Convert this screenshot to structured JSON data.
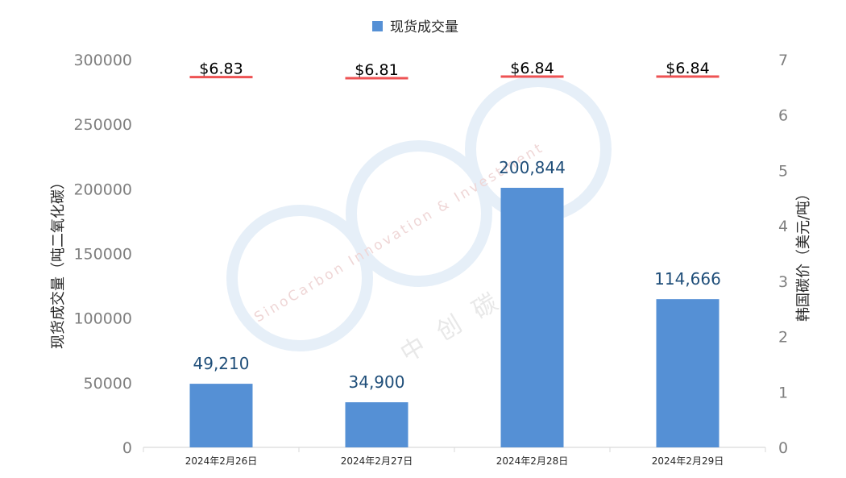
{
  "chart_data": {
    "type": "bar",
    "categories": [
      "2024年2月26日",
      "2024年2月27日",
      "2024年2月28日",
      "2024年2月29日"
    ],
    "series": [
      {
        "name": "现货成交量",
        "axis": "left",
        "values": [
          49210,
          34900,
          200844,
          114666
        ],
        "value_labels": [
          "49,210",
          "34,900",
          "200,844",
          "114,666"
        ],
        "color": "#5590d5"
      },
      {
        "axis": "right",
        "marker": "dash",
        "values": [
          6.83,
          6.81,
          6.84,
          6.84
        ],
        "value_labels": [
          "$6.83",
          "$6.81",
          "$6.84",
          "$6.84"
        ],
        "color": "#ee5253"
      }
    ],
    "ylabel": "现货成交量（吨二氧化碳）",
    "y2label": "韩国碳价（美元/吨）",
    "ylim": [
      0,
      300000
    ],
    "y2lim": [
      0,
      7
    ],
    "yticks": [
      "0",
      "50000",
      "100000",
      "150000",
      "200000",
      "250000",
      "300000"
    ],
    "y2ticks": [
      "0",
      "1",
      "2",
      "3",
      "4",
      "5",
      "6",
      "7"
    ],
    "legend": "top-center",
    "grid": false
  },
  "watermark": {
    "text_en": "SinoCarbon Innovation & Investment",
    "text_cn": "中创碳投"
  },
  "colors": {
    "bar": "#5590d5",
    "price": "#ee5253",
    "bar_label": "#1f4e79",
    "axis_text": "#7f7f7f",
    "axis_line": "#d9d9d9",
    "watermark": "#e3edf7"
  }
}
